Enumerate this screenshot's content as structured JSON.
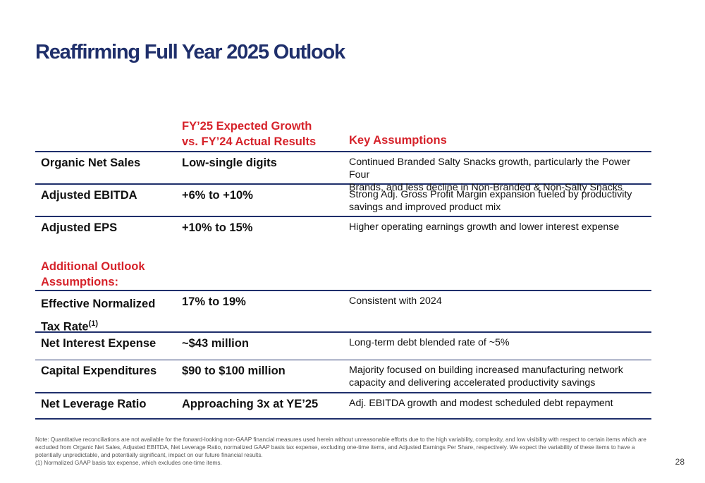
{
  "title": "Reaffirming Full Year 2025 Outlook",
  "header": {
    "growth_line1": "FY’25 Expected Growth",
    "growth_line2": "vs. FY’24 Actual Results",
    "key": "Key Assumptions"
  },
  "rows": [
    {
      "label": "Organic Net Sales",
      "value": "Low-single digits",
      "desc1": "Continued Branded Salty Snacks growth, particularly the Power Four",
      "desc2": "Brands, and less decline in Non-Branded & Non-Salty Snacks"
    },
    {
      "label": "Adjusted EBITDA",
      "value": "+6% to +10%",
      "desc1": "Strong Adj. Gross Profit Margin expansion fueled by productivity",
      "desc2": "savings and improved product mix"
    },
    {
      "label": "Adjusted EPS",
      "value": "+10% to 15%",
      "desc1": "Higher operating earnings growth and lower interest expense",
      "desc2": ""
    }
  ],
  "additional": {
    "line1": "Additional Outlook",
    "line2": "Assumptions:"
  },
  "rows2": [
    {
      "label1": "Effective Normalized",
      "label2": "Tax Rate",
      "label_sup": "(1)",
      "value": "17% to 19%",
      "desc1": "Consistent with 2024",
      "desc2": ""
    },
    {
      "label": "Net Interest Expense",
      "value": "~$43 million",
      "desc1": "Long-term debt blended rate of ~5%",
      "desc2": ""
    },
    {
      "label": "Capital Expenditures",
      "value": "$90 to $100 million",
      "desc1": "Majority focused on building increased manufacturing network",
      "desc2": "capacity and delivering accelerated productivity savings"
    },
    {
      "label": "Net Leverage Ratio",
      "value": "Approaching 3x at YE’25",
      "desc1": "Adj. EBITDA growth and modest scheduled debt repayment",
      "desc2": ""
    }
  ],
  "note": {
    "line1": "Note: Quantitative reconciliations are not available for the forward-looking non-GAAP financial measures used herein without unreasonable efforts due to the high variability, complexity, and low visibility with respect to certain items which are excluded from Organic Net Sales, Adjusted EBITDA, Net Leverage Ratio, normalized GAAP basis tax expense, excluding one-time items, and Adjusted Earnings Per Share, respectively. We expect the variability of these items to have a potentially unpredictable, and potentially significant, impact on our future financial results.",
    "line2": "(1) Normalized GAAP basis tax expense, which excludes one-time items."
  },
  "page_number": "28"
}
